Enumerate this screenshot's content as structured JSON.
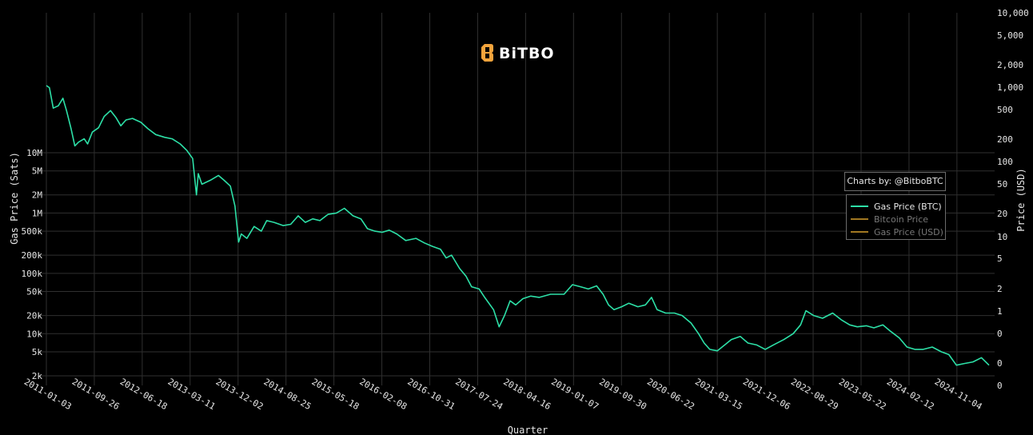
{
  "logo": {
    "text": "BiTBO"
  },
  "credit": {
    "text": "Charts by: @BitboBTC"
  },
  "legend": [
    {
      "label": "Gas Price (BTC)",
      "color": "#2de0a7",
      "active": true
    },
    {
      "label": "Bitcoin Price",
      "color": "#c9962a",
      "active": false
    },
    {
      "label": "Gas Price (USD)",
      "color": "#c9962a",
      "active": false
    }
  ],
  "chart_data": {
    "type": "line",
    "xlabel": "Quarter",
    "ylabel_left": "Gas Price (Sats)",
    "ylabel_right": "Price (USD)",
    "y_scale": "log",
    "x_tick_labels": [
      "2011-01-03",
      "2011-09-26",
      "2012-06-18",
      "2013-03-11",
      "2013-12-02",
      "2014-08-25",
      "2015-05-18",
      "2016-02-08",
      "2016-10-31",
      "2017-07-24",
      "2018-04-16",
      "2019-01-07",
      "2019-09-30",
      "2020-06-22",
      "2021-03-15",
      "2021-12-06",
      "2022-08-29",
      "2023-05-22",
      "2024-02-12",
      "2024-11-04"
    ],
    "y_left_ticks": [
      {
        "label": "10M",
        "value": 10000000
      },
      {
        "label": "5M",
        "value": 5000000
      },
      {
        "label": "2M",
        "value": 2000000
      },
      {
        "label": "1M",
        "value": 1000000
      },
      {
        "label": "500k",
        "value": 500000
      },
      {
        "label": "200k",
        "value": 200000
      },
      {
        "label": "100k",
        "value": 100000
      },
      {
        "label": "50k",
        "value": 50000
      },
      {
        "label": "20k",
        "value": 20000
      },
      {
        "label": "10k",
        "value": 10000
      },
      {
        "label": "5k",
        "value": 5000
      },
      {
        "label": "2k",
        "value": 2000
      }
    ],
    "y_right_ticks": [
      "10,000",
      "5,000",
      "2,000",
      "1,000",
      "500",
      "200",
      "100",
      "50",
      "20",
      "10",
      "5",
      "2",
      "1",
      "0",
      "0",
      "0"
    ],
    "series": [
      {
        "name": "Gas Price (BTC)",
        "color": "#2de0a7",
        "points": [
          [
            "2011-01-03",
            130000000
          ],
          [
            "2011-01-20",
            120000000
          ],
          [
            "2011-02-10",
            55000000
          ],
          [
            "2011-03-10",
            60000000
          ],
          [
            "2011-04-05",
            80000000
          ],
          [
            "2011-04-25",
            50000000
          ],
          [
            "2011-05-20",
            25000000
          ],
          [
            "2011-06-10",
            13000000
          ],
          [
            "2011-07-01",
            15000000
          ],
          [
            "2011-08-01",
            17000000
          ],
          [
            "2011-08-20",
            14000000
          ],
          [
            "2011-09-15",
            22000000
          ],
          [
            "2011-10-20",
            26000000
          ],
          [
            "2011-11-20",
            40000000
          ],
          [
            "2011-12-25",
            50000000
          ],
          [
            "2012-01-25",
            38000000
          ],
          [
            "2012-02-20",
            28000000
          ],
          [
            "2012-03-20",
            35000000
          ],
          [
            "2012-04-25",
            37000000
          ],
          [
            "2012-06-10",
            32000000
          ],
          [
            "2012-07-20",
            25000000
          ],
          [
            "2012-09-01",
            20000000
          ],
          [
            "2012-10-20",
            18000000
          ],
          [
            "2012-12-01",
            17000000
          ],
          [
            "2013-01-15",
            14000000
          ],
          [
            "2013-02-20",
            11000000
          ],
          [
            "2013-03-25",
            8000000
          ],
          [
            "2013-04-15",
            2000000
          ],
          [
            "2013-04-25",
            4500000
          ],
          [
            "2013-05-15",
            3000000
          ],
          [
            "2013-07-01",
            3500000
          ],
          [
            "2013-08-15",
            4200000
          ],
          [
            "2013-09-15",
            3500000
          ],
          [
            "2013-10-20",
            2800000
          ],
          [
            "2013-11-15",
            1300000
          ],
          [
            "2013-12-05",
            330000
          ],
          [
            "2013-12-20",
            450000
          ],
          [
            "2014-01-20",
            380000
          ],
          [
            "2014-03-01",
            600000
          ],
          [
            "2014-04-10",
            500000
          ],
          [
            "2014-05-10",
            750000
          ],
          [
            "2014-06-20",
            700000
          ],
          [
            "2014-08-10",
            620000
          ],
          [
            "2014-09-20",
            650000
          ],
          [
            "2014-11-01",
            900000
          ],
          [
            "2014-12-10",
            700000
          ],
          [
            "2015-01-20",
            800000
          ],
          [
            "2015-03-01",
            750000
          ],
          [
            "2015-04-15",
            950000
          ],
          [
            "2015-06-01",
            1000000
          ],
          [
            "2015-07-15",
            1200000
          ],
          [
            "2015-09-01",
            900000
          ],
          [
            "2015-10-15",
            800000
          ],
          [
            "2015-11-20",
            550000
          ],
          [
            "2016-01-01",
            500000
          ],
          [
            "2016-02-10",
            480000
          ],
          [
            "2016-03-20",
            520000
          ],
          [
            "2016-05-01",
            450000
          ],
          [
            "2016-06-20",
            350000
          ],
          [
            "2016-08-15",
            380000
          ],
          [
            "2016-10-01",
            320000
          ],
          [
            "2016-11-15",
            280000
          ],
          [
            "2016-12-30",
            250000
          ],
          [
            "2017-01-30",
            180000
          ],
          [
            "2017-03-01",
            200000
          ],
          [
            "2017-04-15",
            120000
          ],
          [
            "2017-05-20",
            90000
          ],
          [
            "2017-06-20",
            60000
          ],
          [
            "2017-08-01",
            55000
          ],
          [
            "2017-09-01",
            40000
          ],
          [
            "2017-10-20",
            25000
          ],
          [
            "2017-11-20",
            13000
          ],
          [
            "2017-12-20",
            20000
          ],
          [
            "2018-01-20",
            35000
          ],
          [
            "2018-02-20",
            30000
          ],
          [
            "2018-04-01",
            38000
          ],
          [
            "2018-05-15",
            42000
          ],
          [
            "2018-07-01",
            40000
          ],
          [
            "2018-09-01",
            45000
          ],
          [
            "2018-11-15",
            45000
          ],
          [
            "2019-01-01",
            65000
          ],
          [
            "2019-02-15",
            60000
          ],
          [
            "2019-03-30",
            55000
          ],
          [
            "2019-05-15",
            62000
          ],
          [
            "2019-06-20",
            45000
          ],
          [
            "2019-07-20",
            30000
          ],
          [
            "2019-08-20",
            25000
          ],
          [
            "2019-10-01",
            28000
          ],
          [
            "2019-11-10",
            32000
          ],
          [
            "2019-12-30",
            28000
          ],
          [
            "2020-02-10",
            30000
          ],
          [
            "2020-03-15",
            40000
          ],
          [
            "2020-04-15",
            25000
          ],
          [
            "2020-06-01",
            22000
          ],
          [
            "2020-07-20",
            22000
          ],
          [
            "2020-09-01",
            20000
          ],
          [
            "2020-10-20",
            15000
          ],
          [
            "2020-12-01",
            10000
          ],
          [
            "2021-01-01",
            7000
          ],
          [
            "2021-02-01",
            5500
          ],
          [
            "2021-03-15",
            5200
          ],
          [
            "2021-04-25",
            6500
          ],
          [
            "2021-06-01",
            8000
          ],
          [
            "2021-07-20",
            9000
          ],
          [
            "2021-09-01",
            7000
          ],
          [
            "2021-10-20",
            6500
          ],
          [
            "2021-12-06",
            5500
          ],
          [
            "2022-01-20",
            6500
          ],
          [
            "2022-03-20",
            8000
          ],
          [
            "2022-05-10",
            10000
          ],
          [
            "2022-06-20",
            14000
          ],
          [
            "2022-07-20",
            24000
          ],
          [
            "2022-09-01",
            20000
          ],
          [
            "2022-10-20",
            18000
          ],
          [
            "2022-12-15",
            22000
          ],
          [
            "2023-02-01",
            17000
          ],
          [
            "2023-03-20",
            14000
          ],
          [
            "2023-05-01",
            13000
          ],
          [
            "2023-06-20",
            13500
          ],
          [
            "2023-08-01",
            12500
          ],
          [
            "2023-09-20",
            14000
          ],
          [
            "2023-11-01",
            11000
          ],
          [
            "2023-12-20",
            8500
          ],
          [
            "2024-02-01",
            6000
          ],
          [
            "2024-03-15",
            5500
          ],
          [
            "2024-05-01",
            5500
          ],
          [
            "2024-06-20",
            6000
          ],
          [
            "2024-08-10",
            5000
          ],
          [
            "2024-09-20",
            4500
          ],
          [
            "2024-11-01",
            3000
          ],
          [
            "2024-12-15",
            3200
          ],
          [
            "2025-02-01",
            3400
          ],
          [
            "2025-03-20",
            4000
          ],
          [
            "2025-05-01",
            3000
          ]
        ]
      }
    ]
  }
}
